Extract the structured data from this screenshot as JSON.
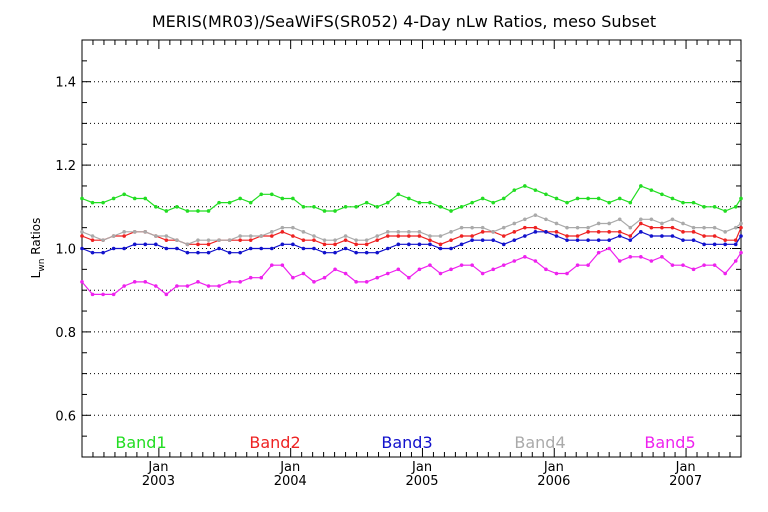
{
  "chart_data": {
    "type": "line",
    "title": "MERIS(MR03)/SeaWiFS(SR052) 4-Day nLw Ratios, meso Subset",
    "ylabel": {
      "main": "L",
      "sub": "wn",
      "rest": " Ratios"
    },
    "xlim": [
      2002.42,
      2007.42
    ],
    "ylim": [
      0.5,
      1.5
    ],
    "y_ticks": [
      0.6,
      0.8,
      1.0,
      1.2,
      1.4
    ],
    "y_tick_labels": [
      "0.6",
      "0.8",
      "1.0",
      "1.2",
      "1.4"
    ],
    "y_minor_step": 0.05,
    "gridlines_y": [
      0.6,
      0.7,
      0.8,
      0.9,
      1.0,
      1.1,
      1.2,
      1.3,
      1.4
    ],
    "x_ticks": [
      {
        "x": 2003.0,
        "month": "Jan",
        "year": "2003"
      },
      {
        "x": 2004.0,
        "month": "Jan",
        "year": "2004"
      },
      {
        "x": 2005.0,
        "month": "Jan",
        "year": "2005"
      },
      {
        "x": 2006.0,
        "month": "Jan",
        "year": "2006"
      },
      {
        "x": 2007.0,
        "month": "Jan",
        "year": "2007"
      }
    ],
    "x_minor_step": 0.08333,
    "legend_placement": "bottom, inside plot",
    "x": [
      2002.42,
      2002.5,
      2002.58,
      2002.66,
      2002.74,
      2002.82,
      2002.9,
      2002.98,
      2003.06,
      2003.14,
      2003.22,
      2003.3,
      2003.38,
      2003.46,
      2003.54,
      2003.62,
      2003.7,
      2003.78,
      2003.86,
      2003.94,
      2004.02,
      2004.1,
      2004.18,
      2004.26,
      2004.34,
      2004.42,
      2004.5,
      2004.58,
      2004.66,
      2004.74,
      2004.82,
      2004.9,
      2004.98,
      2005.06,
      2005.14,
      2005.22,
      2005.3,
      2005.38,
      2005.46,
      2005.54,
      2005.62,
      2005.7,
      2005.78,
      2005.86,
      2005.94,
      2006.02,
      2006.1,
      2006.18,
      2006.26,
      2006.34,
      2006.42,
      2006.5,
      2006.58,
      2006.66,
      2006.74,
      2006.82,
      2006.9,
      2006.98,
      2007.06,
      2007.14,
      2007.22,
      2007.3,
      2007.38,
      2007.42
    ],
    "series": [
      {
        "name": "Band1",
        "color": "#22dd22",
        "values": [
          1.12,
          1.11,
          1.11,
          1.12,
          1.13,
          1.12,
          1.12,
          1.1,
          1.09,
          1.1,
          1.09,
          1.09,
          1.09,
          1.11,
          1.11,
          1.12,
          1.11,
          1.13,
          1.13,
          1.12,
          1.12,
          1.1,
          1.1,
          1.09,
          1.09,
          1.1,
          1.1,
          1.11,
          1.1,
          1.11,
          1.13,
          1.12,
          1.11,
          1.11,
          1.1,
          1.09,
          1.1,
          1.11,
          1.12,
          1.11,
          1.12,
          1.14,
          1.15,
          1.14,
          1.13,
          1.12,
          1.11,
          1.12,
          1.12,
          1.12,
          1.11,
          1.12,
          1.11,
          1.15,
          1.14,
          1.13,
          1.12,
          1.11,
          1.11,
          1.1,
          1.1,
          1.09,
          1.1,
          1.12
        ]
      },
      {
        "name": "Band2",
        "color": "#ee2222",
        "values": [
          1.03,
          1.02,
          1.02,
          1.03,
          1.03,
          1.04,
          1.04,
          1.03,
          1.02,
          1.02,
          1.01,
          1.01,
          1.01,
          1.02,
          1.02,
          1.02,
          1.02,
          1.03,
          1.03,
          1.04,
          1.03,
          1.02,
          1.02,
          1.01,
          1.01,
          1.02,
          1.01,
          1.01,
          1.02,
          1.03,
          1.03,
          1.03,
          1.03,
          1.02,
          1.01,
          1.02,
          1.03,
          1.03,
          1.04,
          1.04,
          1.03,
          1.04,
          1.05,
          1.05,
          1.04,
          1.04,
          1.03,
          1.03,
          1.04,
          1.04,
          1.04,
          1.04,
          1.03,
          1.06,
          1.05,
          1.05,
          1.05,
          1.04,
          1.04,
          1.03,
          1.03,
          1.02,
          1.02,
          1.05
        ]
      },
      {
        "name": "Band3",
        "color": "#1111cc",
        "values": [
          1.0,
          0.99,
          0.99,
          1.0,
          1.0,
          1.01,
          1.01,
          1.01,
          1.0,
          1.0,
          0.99,
          0.99,
          0.99,
          1.0,
          0.99,
          0.99,
          1.0,
          1.0,
          1.0,
          1.01,
          1.01,
          1.0,
          1.0,
          0.99,
          0.99,
          1.0,
          0.99,
          0.99,
          0.99,
          1.0,
          1.01,
          1.01,
          1.01,
          1.01,
          1.0,
          1.0,
          1.01,
          1.02,
          1.02,
          1.02,
          1.01,
          1.02,
          1.03,
          1.04,
          1.04,
          1.03,
          1.02,
          1.02,
          1.02,
          1.02,
          1.02,
          1.03,
          1.02,
          1.04,
          1.03,
          1.03,
          1.03,
          1.02,
          1.02,
          1.01,
          1.01,
          1.01,
          1.01,
          1.03
        ]
      },
      {
        "name": "Band4",
        "color": "#aaaaaa",
        "values": [
          1.04,
          1.03,
          1.02,
          1.03,
          1.04,
          1.04,
          1.04,
          1.03,
          1.03,
          1.02,
          1.01,
          1.02,
          1.02,
          1.02,
          1.02,
          1.03,
          1.03,
          1.03,
          1.04,
          1.05,
          1.05,
          1.04,
          1.03,
          1.02,
          1.02,
          1.03,
          1.02,
          1.02,
          1.03,
          1.04,
          1.04,
          1.04,
          1.04,
          1.03,
          1.03,
          1.04,
          1.05,
          1.05,
          1.05,
          1.04,
          1.05,
          1.06,
          1.07,
          1.08,
          1.07,
          1.06,
          1.05,
          1.05,
          1.05,
          1.06,
          1.06,
          1.07,
          1.05,
          1.07,
          1.07,
          1.06,
          1.07,
          1.06,
          1.05,
          1.05,
          1.05,
          1.04,
          1.05,
          1.06
        ]
      },
      {
        "name": "Band5",
        "color": "#ee22ee",
        "values": [
          0.92,
          0.89,
          0.89,
          0.89,
          0.91,
          0.92,
          0.92,
          0.91,
          0.89,
          0.91,
          0.91,
          0.92,
          0.91,
          0.91,
          0.92,
          0.92,
          0.93,
          0.93,
          0.96,
          0.96,
          0.93,
          0.94,
          0.92,
          0.93,
          0.95,
          0.94,
          0.92,
          0.92,
          0.93,
          0.94,
          0.95,
          0.93,
          0.95,
          0.96,
          0.94,
          0.95,
          0.96,
          0.96,
          0.94,
          0.95,
          0.96,
          0.97,
          0.98,
          0.97,
          0.95,
          0.94,
          0.94,
          0.96,
          0.96,
          0.99,
          1.0,
          0.97,
          0.98,
          0.98,
          0.97,
          0.98,
          0.96,
          0.96,
          0.95,
          0.96,
          0.96,
          0.94,
          0.97,
          0.99
        ]
      }
    ]
  }
}
